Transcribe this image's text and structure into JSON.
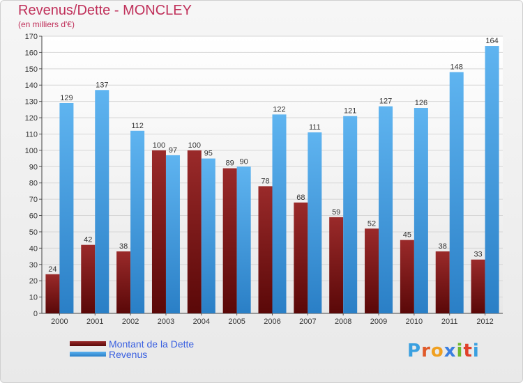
{
  "header": {
    "title": "Revenus/Dette - MONCLEY",
    "subtitle": "(en milliers d'€)"
  },
  "logo": {
    "letters": [
      "P",
      "r",
      "o",
      "x",
      "i",
      "t",
      "i"
    ]
  },
  "chart_data": {
    "type": "bar",
    "title": "Revenus/Dette - MONCLEY",
    "ylabel": "(en milliers d'€)",
    "ylim": [
      0,
      170
    ],
    "y_ticks": [
      0,
      10,
      20,
      30,
      40,
      50,
      60,
      70,
      80,
      90,
      100,
      110,
      120,
      130,
      140,
      150,
      160,
      170
    ],
    "categories": [
      "2000",
      "2001",
      "2002",
      "2003",
      "2004",
      "2005",
      "2006",
      "2007",
      "2008",
      "2009",
      "2010",
      "2011",
      "2012"
    ],
    "series": [
      {
        "name": "Montant de la Dette",
        "color": "#7a1a1a",
        "values": [
          24,
          42,
          38,
          100,
          100,
          89,
          78,
          68,
          59,
          52,
          45,
          38,
          33
        ]
      },
      {
        "name": "Revenus",
        "color": "#3a9de0",
        "values": [
          129,
          137,
          112,
          97,
          95,
          90,
          122,
          111,
          121,
          127,
          126,
          148,
          164
        ]
      }
    ],
    "grid": true,
    "legend_position": "bottom-left"
  }
}
